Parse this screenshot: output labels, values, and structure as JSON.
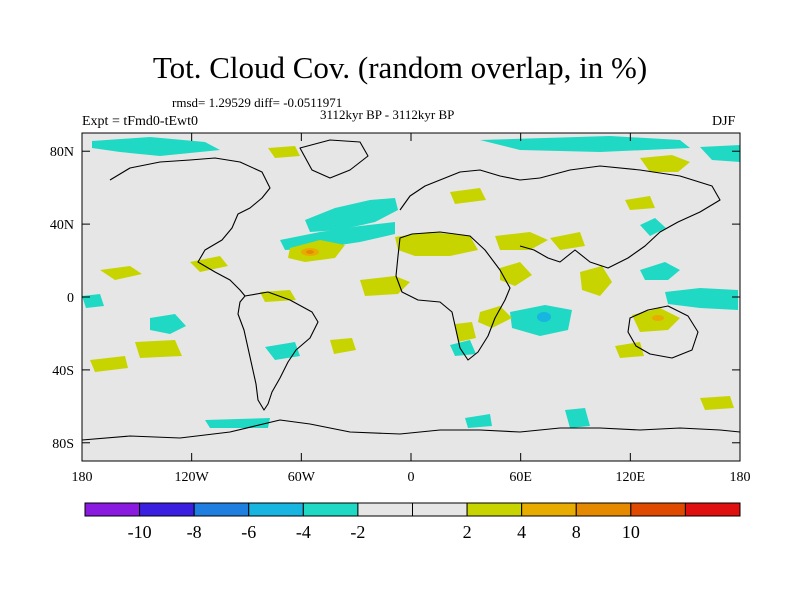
{
  "title": "Tot. Cloud Cov. (random overlap, in %)",
  "stats": "rmsd= 1.29529 diff= -0.0511971",
  "period": "3112kyr BP - 3112kyr BP",
  "experiment": "Expt = tFmd0-tEwt0",
  "season": "DJF",
  "map": {
    "background": "#e6e6e6",
    "lon_range": [
      -180,
      180
    ],
    "lat_range": [
      -90,
      90
    ],
    "x_ticks": [
      {
        "lon": -180,
        "label": "180"
      },
      {
        "lon": -120,
        "label": "120W"
      },
      {
        "lon": -60,
        "label": "60W"
      },
      {
        "lon": 0,
        "label": "0"
      },
      {
        "lon": 60,
        "label": "60E"
      },
      {
        "lon": 120,
        "label": "120E"
      },
      {
        "lon": 180,
        "label": "180"
      }
    ],
    "y_ticks": [
      {
        "lat": 80,
        "label": "80N"
      },
      {
        "lat": 40,
        "label": "40N"
      },
      {
        "lat": 0,
        "label": "0"
      },
      {
        "lat": -40,
        "label": "40S"
      },
      {
        "lat": -80,
        "label": "80S"
      }
    ]
  },
  "colorbar": {
    "colors": [
      "#8a1adf",
      "#3b1fe0",
      "#1f7fe0",
      "#17b5e0",
      "#1fd9c4",
      "#e6e6e6",
      "#e6e6e6",
      "#c8d400",
      "#e8ac00",
      "#e58a00",
      "#e04a00",
      "#e01010"
    ],
    "labels": [
      "-10",
      "-8",
      "-6",
      "-4",
      "-2",
      "2",
      "4",
      "8",
      "10"
    ]
  },
  "anomaly_colors": {
    "neg2": "#1fd9c4",
    "neg4": "#17b5e0",
    "neg6": "#1f7fe0",
    "pos2": "#c8d400",
    "pos4": "#e8ac00",
    "pos8": "#e58a00"
  }
}
